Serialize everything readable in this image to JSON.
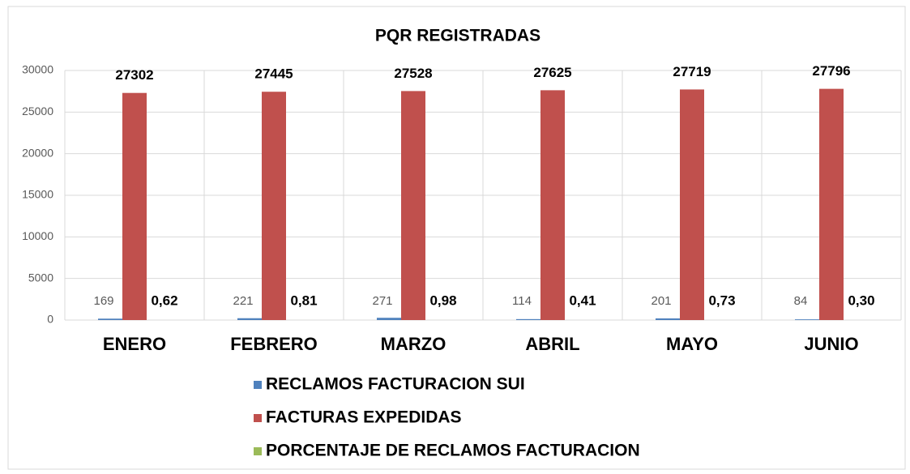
{
  "chart_data": {
    "type": "bar",
    "title": "PQR  REGISTRADAS",
    "categories": [
      "ENERO",
      "FEBRERO",
      "MARZO",
      "ABRIL",
      "MAYO",
      "JUNIO"
    ],
    "series": [
      {
        "name": "RECLAMOS FACTURACION SUI",
        "color": "#4f81bd",
        "values": [
          169,
          221,
          271,
          114,
          201,
          84
        ]
      },
      {
        "name": "FACTURAS EXPEDIDAS",
        "color": "#c0504d",
        "values": [
          27302,
          27445,
          27528,
          27625,
          27719,
          27796
        ]
      },
      {
        "name": "PORCENTAJE DE RECLAMOS FACTURACION",
        "color": "#9bbb59",
        "values": [
          0.62,
          0.81,
          0.98,
          0.41,
          0.73,
          0.3
        ],
        "value_labels": [
          "0,62",
          "0,81",
          "0,98",
          "0,41",
          "0,73",
          "0,30"
        ]
      }
    ],
    "ylim": [
      0,
      30000
    ],
    "yticks": [
      0,
      5000,
      10000,
      15000,
      20000,
      25000,
      30000
    ],
    "grid": true,
    "legend": "bottom"
  }
}
